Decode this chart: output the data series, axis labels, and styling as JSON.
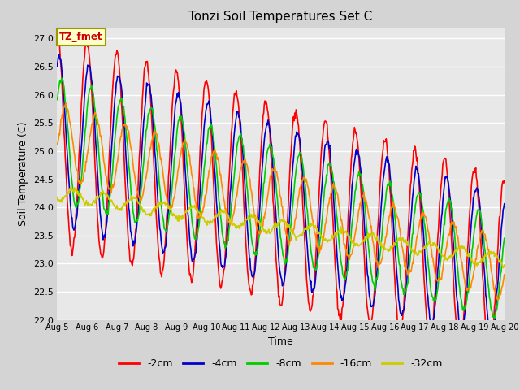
{
  "title": "Tonzi Soil Temperatures Set C",
  "xlabel": "Time",
  "ylabel": "Soil Temperature (C)",
  "ylim": [
    22.0,
    27.2
  ],
  "yticks": [
    22.0,
    22.5,
    23.0,
    23.5,
    24.0,
    24.5,
    25.0,
    25.5,
    26.0,
    26.5,
    27.0
  ],
  "date_labels": [
    "Aug 5",
    "Aug 6",
    "Aug 7",
    "Aug 8",
    "Aug 9",
    "Aug 10",
    "Aug 11",
    "Aug 12",
    "Aug 13",
    "Aug 14",
    "Aug 15",
    "Aug 16",
    "Aug 17",
    "Aug 18",
    "Aug 19",
    "Aug 20"
  ],
  "series_colors": [
    "#ff0000",
    "#0000cc",
    "#00cc00",
    "#ff8800",
    "#cccc00"
  ],
  "series_labels": [
    "-2cm",
    "-4cm",
    "-8cm",
    "-16cm",
    "-32cm"
  ],
  "line_widths": [
    1.2,
    1.2,
    1.2,
    1.2,
    1.2
  ],
  "legend_label": "TZ_fmet",
  "fig_bg": "#d4d4d4",
  "plot_bg": "#e8e8e8",
  "n_days": 15,
  "samples_per_day": 48
}
